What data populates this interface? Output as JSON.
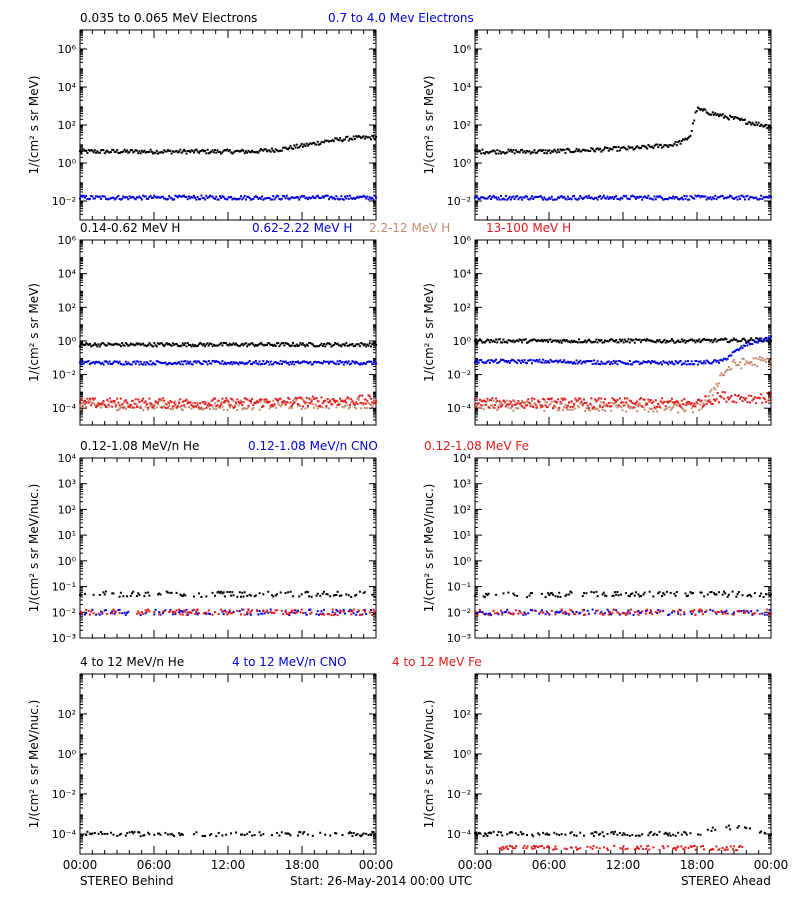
{
  "footer": {
    "left": "STEREO Behind",
    "center": "Start: 26-May-2014 00:00 UTC",
    "right": "STEREO Ahead"
  },
  "x_tick_labels": [
    "00:00",
    "06:00",
    "12:00",
    "18:00",
    "00:00"
  ],
  "colors": {
    "black": "#000000",
    "blue": "#0000dd",
    "tan": "#c88a6e",
    "red": "#e61a1a"
  },
  "chart_data": [
    {
      "type": "scatter",
      "id": "electrons",
      "ylabel": "1/(cm² s sr MeV)",
      "y_scale": "log",
      "ylim": [
        0.001,
        10000000
      ],
      "y_ticks": [
        {
          "v": 0.01,
          "label": "10⁻²"
        },
        {
          "v": 1,
          "label": "10⁰"
        },
        {
          "v": 100,
          "label": "10²"
        },
        {
          "v": 10000,
          "label": "10⁴"
        },
        {
          "v": 1000000,
          "label": "10⁶"
        }
      ],
      "xlim": [
        0,
        24
      ],
      "legend": [
        {
          "label": "0.035 to 0.065 MeV Electrons",
          "color": "#000000"
        },
        {
          "label": "0.7 to 4.0 Mev Electrons",
          "color": "#0000dd"
        }
      ],
      "panels": {
        "behind": [
          {
            "color": "#000000",
            "points": [
              [
                0,
                4
              ],
              [
                3,
                4
              ],
              [
                6,
                4
              ],
              [
                9,
                4
              ],
              [
                12,
                4
              ],
              [
                14,
                4
              ],
              [
                16,
                5
              ],
              [
                18,
                8
              ],
              [
                20,
                14
              ],
              [
                22,
                20
              ],
              [
                24,
                22
              ]
            ]
          },
          {
            "color": "#0000dd",
            "points": [
              [
                0,
                0.015
              ],
              [
                6,
                0.015
              ],
              [
                12,
                0.015
              ],
              [
                18,
                0.015
              ],
              [
                24,
                0.015
              ]
            ]
          }
        ],
        "ahead": [
          {
            "color": "#000000",
            "points": [
              [
                0,
                4
              ],
              [
                6,
                4
              ],
              [
                10,
                5
              ],
              [
                13,
                6
              ],
              [
                16,
                9
              ],
              [
                17,
                15
              ],
              [
                17.5,
                30
              ],
              [
                17.8,
                250
              ],
              [
                18,
                700
              ],
              [
                19,
                450
              ],
              [
                20,
                300
              ],
              [
                21,
                220
              ],
              [
                22,
                150
              ],
              [
                23,
                110
              ],
              [
                24,
                80
              ]
            ]
          },
          {
            "color": "#0000dd",
            "points": [
              [
                0,
                0.015
              ],
              [
                6,
                0.015
              ],
              [
                12,
                0.015
              ],
              [
                18,
                0.015
              ],
              [
                24,
                0.015
              ]
            ]
          }
        ]
      }
    },
    {
      "type": "scatter",
      "id": "protons",
      "ylabel": "1/(cm² s sr MeV)",
      "y_scale": "log",
      "ylim": [
        1e-05,
        1000000
      ],
      "y_ticks": [
        {
          "v": 0.0001,
          "label": "10⁻⁴"
        },
        {
          "v": 0.01,
          "label": "10⁻²"
        },
        {
          "v": 1,
          "label": "10⁰"
        },
        {
          "v": 100,
          "label": "10²"
        },
        {
          "v": 10000,
          "label": "10⁴"
        },
        {
          "v": 1000000,
          "label": "10⁶"
        }
      ],
      "xlim": [
        0,
        24
      ],
      "legend": [
        {
          "label": "0.14-0.62 MeV H",
          "color": "#000000"
        },
        {
          "label": "0.62-2.22 MeV H",
          "color": "#0000dd"
        },
        {
          "label": "2.2-12 MeV H",
          "color": "#c88a6e"
        },
        {
          "label": "13-100 MeV H",
          "color": "#e61a1a"
        }
      ],
      "panels": {
        "behind": [
          {
            "color": "#000000",
            "points": [
              [
                0,
                0.6
              ],
              [
                6,
                0.6
              ],
              [
                12,
                0.6
              ],
              [
                18,
                0.6
              ],
              [
                24,
                0.6
              ]
            ]
          },
          {
            "color": "#0000dd",
            "points": [
              [
                0,
                0.05
              ],
              [
                6,
                0.05
              ],
              [
                12,
                0.05
              ],
              [
                18,
                0.05
              ],
              [
                24,
                0.05
              ]
            ]
          },
          {
            "color": "#c88a6e",
            "points": [
              [
                0,
                0.00015
              ],
              [
                12,
                0.00015
              ],
              [
                24,
                0.0002
              ]
            ]
          },
          {
            "color": "#e61a1a",
            "points": [
              [
                0,
                0.0002
              ],
              [
                12,
                0.0002
              ],
              [
                24,
                0.0003
              ]
            ]
          }
        ],
        "ahead": [
          {
            "color": "#000000",
            "points": [
              [
                0,
                1
              ],
              [
                6,
                1
              ],
              [
                12,
                1
              ],
              [
                18,
                1
              ],
              [
                24,
                1.2
              ]
            ]
          },
          {
            "color": "#0000dd",
            "points": [
              [
                0,
                0.06
              ],
              [
                6,
                0.06
              ],
              [
                12,
                0.05
              ],
              [
                18,
                0.05
              ],
              [
                20,
                0.06
              ],
              [
                21,
                0.2
              ],
              [
                22,
                0.6
              ],
              [
                23,
                1
              ],
              [
                24,
                1.5
              ]
            ]
          },
          {
            "color": "#c88a6e",
            "points": [
              [
                0,
                0.00015
              ],
              [
                12,
                0.00012
              ],
              [
                18,
                0.0001
              ],
              [
                19,
                0.0004
              ],
              [
                19.5,
                0.002
              ],
              [
                20,
                0.01
              ],
              [
                21,
                0.04
              ],
              [
                22,
                0.05
              ],
              [
                23,
                0.06
              ],
              [
                24,
                0.06
              ]
            ]
          },
          {
            "color": "#e61a1a",
            "points": [
              [
                0,
                0.0002
              ],
              [
                12,
                0.0002
              ],
              [
                18,
                0.0002
              ],
              [
                19,
                0.0003
              ],
              [
                20,
                0.0005
              ],
              [
                22,
                0.0004
              ],
              [
                24,
                0.0004
              ]
            ]
          }
        ]
      }
    },
    {
      "type": "scatter",
      "id": "heavy_low",
      "ylabel": "1/(cm² s sr MeV/nuc.)",
      "y_scale": "log",
      "ylim": [
        0.001,
        10000
      ],
      "y_ticks": [
        {
          "v": 0.001,
          "label": "10⁻³"
        },
        {
          "v": 0.01,
          "label": "10⁻²"
        },
        {
          "v": 0.1,
          "label": "10⁻¹"
        },
        {
          "v": 1,
          "label": "10⁰"
        },
        {
          "v": 10,
          "label": "10¹"
        },
        {
          "v": 100,
          "label": "10²"
        },
        {
          "v": 1000,
          "label": "10³"
        },
        {
          "v": 10000,
          "label": "10⁴"
        }
      ],
      "xlim": [
        0,
        24
      ],
      "legend": [
        {
          "label": "0.12-1.08 MeV/n He",
          "color": "#000000"
        },
        {
          "label": "0.12-1.08 MeV/n CNO",
          "color": "#0000dd"
        },
        {
          "label": "0.12-1.08 MeV Fe",
          "color": "#e61a1a"
        }
      ],
      "panels": {
        "behind": [
          {
            "color": "#000000",
            "points": [
              [
                0,
                0.05
              ],
              [
                12,
                0.05
              ],
              [
                24,
                0.05
              ]
            ]
          },
          {
            "color": "#0000dd",
            "points": [
              [
                0,
                0.01
              ],
              [
                12,
                0.01
              ],
              [
                24,
                0.01
              ]
            ]
          },
          {
            "color": "#e61a1a",
            "points": [
              [
                0,
                0.01
              ],
              [
                12,
                0.01
              ],
              [
                24,
                0.01
              ]
            ]
          }
        ],
        "ahead": [
          {
            "color": "#000000",
            "points": [
              [
                0,
                0.05
              ],
              [
                12,
                0.05
              ],
              [
                24,
                0.05
              ]
            ]
          },
          {
            "color": "#0000dd",
            "points": [
              [
                0,
                0.01
              ],
              [
                12,
                0.01
              ],
              [
                24,
                0.01
              ]
            ]
          },
          {
            "color": "#e61a1a",
            "points": [
              [
                0,
                0.01
              ],
              [
                12,
                0.01
              ],
              [
                24,
                0.01
              ]
            ]
          }
        ]
      }
    },
    {
      "type": "scatter",
      "id": "heavy_high",
      "ylabel": "1/(cm² s sr MeV/nuc.)",
      "y_scale": "log",
      "ylim": [
        1e-05,
        10000
      ],
      "y_ticks": [
        {
          "v": 0.0001,
          "label": "10⁻⁴"
        },
        {
          "v": 0.01,
          "label": "10⁻²"
        },
        {
          "v": 1,
          "label": "10⁰"
        },
        {
          "v": 100,
          "label": "10²"
        }
      ],
      "xlim": [
        0,
        24
      ],
      "legend": [
        {
          "label": "4 to 12 MeV/n He",
          "color": "#000000"
        },
        {
          "label": "4 to 12 MeV/n CNO",
          "color": "#0000dd"
        },
        {
          "label": "4 to 12 MeV Fe",
          "color": "#e61a1a"
        }
      ],
      "panels": {
        "behind": [
          {
            "color": "#000000",
            "points": [
              [
                0,
                0.0001
              ],
              [
                12,
                0.0001
              ],
              [
                24,
                0.0001
              ]
            ]
          }
        ],
        "ahead": [
          {
            "color": "#000000",
            "points": [
              [
                0,
                0.0001
              ],
              [
                18,
                0.0001
              ],
              [
                19,
                0.00015
              ],
              [
                20,
                0.0002
              ],
              [
                22,
                0.00025
              ],
              [
                24,
                0.0001
              ]
            ]
          },
          {
            "color": "#e61a1a",
            "points": [
              [
                2,
                2e-05
              ],
              [
                22,
                2e-05
              ]
            ]
          }
        ]
      }
    }
  ]
}
